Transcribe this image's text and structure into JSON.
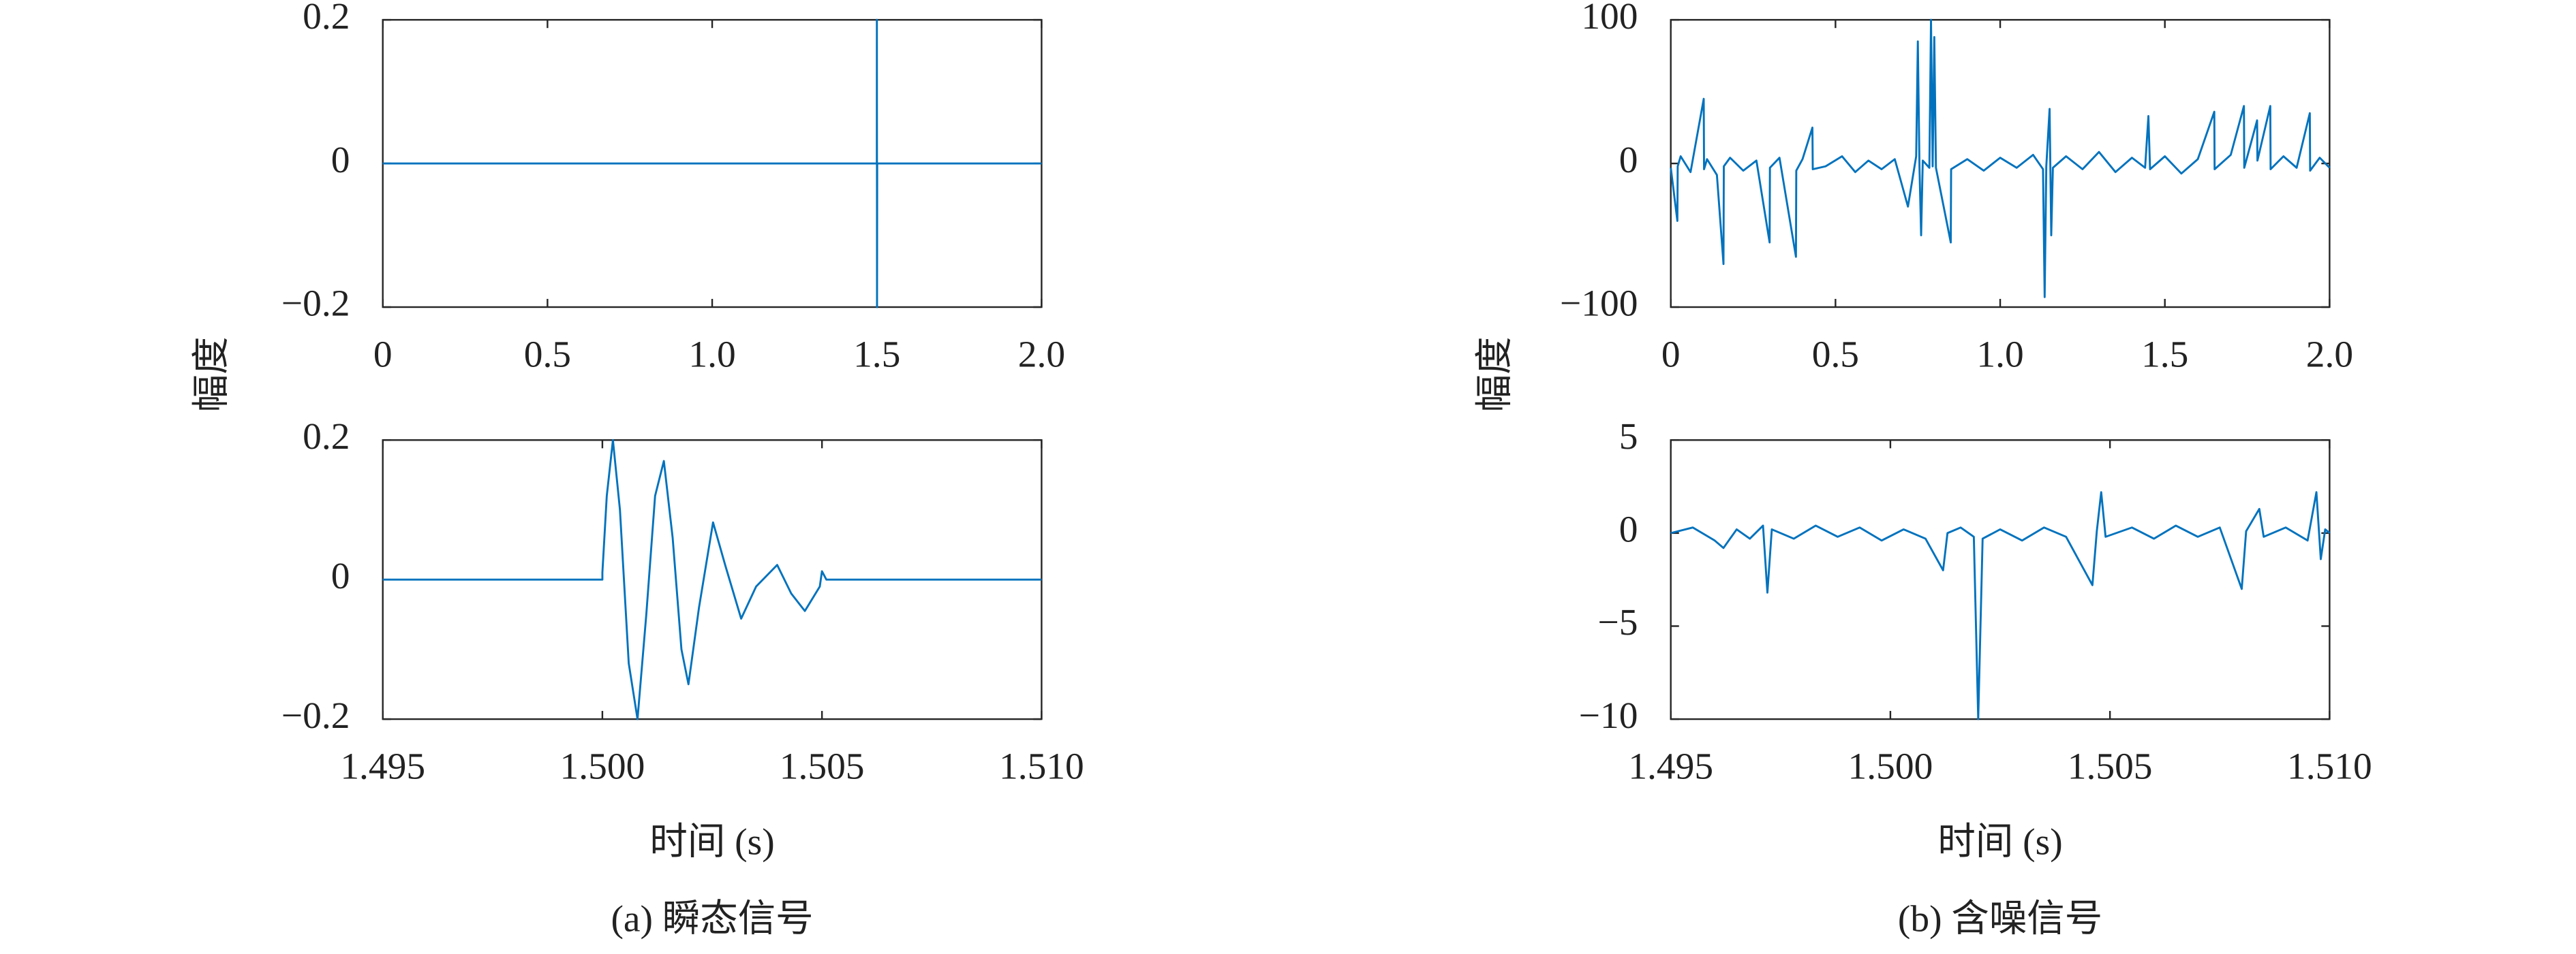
{
  "chart_data": [
    {
      "type": "line",
      "ylabel": "幅度",
      "xlim": [
        0,
        2
      ],
      "xticks": [
        0,
        0.5,
        {
          "value": 1,
          "label": "1.0"
        },
        1.5,
        {
          "value": 2,
          "label": "2.0"
        }
      ],
      "ylim": [
        -0.2,
        0.2
      ],
      "yticks": [
        {
          "value": -0.2,
          "label": "−0.2"
        },
        0,
        0.2
      ],
      "series": [
        {
          "color": "#0072bd",
          "x": [
            0,
            1.4999,
            1.5,
            1.5005,
            1.501,
            2.0
          ],
          "values": [
            0,
            0,
            0.2,
            -0.2,
            0,
            0
          ]
        }
      ]
    },
    {
      "type": "line",
      "xlabel": "时间 (s)",
      "caption": "(a) 瞬态信号",
      "xlim": [
        1.495,
        1.51
      ],
      "xticks": [
        {
          "value": 1.495,
          "label": "1.495"
        },
        {
          "value": 1.5,
          "label": "1.500"
        },
        {
          "value": 1.505,
          "label": "1.505"
        },
        {
          "value": 1.51,
          "label": "1.510"
        }
      ],
      "ylim": [
        -0.2,
        0.2
      ],
      "yticks": [
        {
          "value": -0.2,
          "label": "−0.2"
        },
        0,
        0.2
      ],
      "series": [
        {
          "color": "#0072bd",
          "x": [
            1.495,
            1.5,
            1.5,
            1.5001,
            1.50024,
            1.5004,
            1.5006,
            1.5008,
            1.501,
            1.5012,
            1.5014,
            1.5016,
            1.5018,
            1.50196,
            1.5022,
            1.50252,
            1.5028,
            1.50316,
            1.5035,
            1.50398,
            1.5043,
            1.50461,
            1.50495,
            1.505,
            1.5051,
            1.51
          ],
          "values": [
            0,
            0,
            0.01,
            0.12,
            0.2,
            0.1,
            -0.12,
            -0.2,
            -0.05,
            0.12,
            0.17,
            0.06,
            -0.1,
            -0.15,
            -0.04,
            0.082,
            0.02,
            -0.056,
            -0.01,
            0.021,
            -0.02,
            -0.045,
            -0.01,
            0.012,
            0,
            0
          ]
        }
      ]
    },
    {
      "type": "line",
      "ylabel": "幅度",
      "xlim": [
        0,
        2
      ],
      "xticks": [
        0,
        0.5,
        {
          "value": 1,
          "label": "1.0"
        },
        1.5,
        {
          "value": 2,
          "label": "2.0"
        }
      ],
      "ylim": [
        -100,
        100
      ],
      "yticks": [
        {
          "value": -100,
          "label": "−100"
        },
        0,
        100
      ],
      "series": [
        {
          "color": "#0072bd",
          "x": [
            0,
            0.02,
            0.021,
            0.03,
            0.06,
            0.1,
            0.101,
            0.11,
            0.14,
            0.16,
            0.161,
            0.18,
            0.22,
            0.26,
            0.3,
            0.301,
            0.33,
            0.38,
            0.381,
            0.4,
            0.43,
            0.431,
            0.47,
            0.52,
            0.56,
            0.6,
            0.64,
            0.68,
            0.72,
            0.745,
            0.75,
            0.755,
            0.76,
            0.765,
            0.785,
            0.79,
            0.795,
            0.8,
            0.805,
            0.85,
            0.851,
            0.9,
            0.95,
            1.0,
            1.05,
            1.1,
            1.13,
            1.135,
            1.14,
            1.15,
            1.155,
            1.16,
            1.2,
            1.25,
            1.3,
            1.35,
            1.4,
            1.44,
            1.45,
            1.455,
            1.5,
            1.55,
            1.6,
            1.65,
            1.651,
            1.7,
            1.74,
            1.741,
            1.78,
            1.781,
            1.82,
            1.821,
            1.86,
            1.9,
            1.94,
            1.941,
            1.97,
            2.0
          ],
          "values": [
            -3,
            -40,
            -2,
            5,
            -6,
            45,
            -4,
            3,
            -8,
            -70,
            -2,
            4,
            -5,
            2,
            -55,
            -3,
            4,
            -65,
            -5,
            3,
            25,
            -4,
            -2,
            5,
            -6,
            2,
            -4,
            3,
            -30,
            5,
            85,
            -3,
            -50,
            2,
            -3,
            100,
            -2,
            88,
            -3,
            -55,
            -4,
            3,
            -5,
            4,
            -3,
            6,
            -4,
            -93,
            -2,
            38,
            -50,
            -3,
            5,
            -4,
            8,
            -6,
            4,
            -3,
            33,
            -4,
            5,
            -7,
            3,
            36,
            -4,
            6,
            40,
            -3,
            30,
            2,
            40,
            -4,
            5,
            -3,
            35,
            -5,
            4,
            -3
          ]
        }
      ]
    },
    {
      "type": "line",
      "xlabel": "时间 (s)",
      "caption": "(b) 含噪信号",
      "xlim": [
        1.495,
        1.51
      ],
      "xticks": [
        {
          "value": 1.495,
          "label": "1.495"
        },
        {
          "value": 1.5,
          "label": "1.500"
        },
        {
          "value": 1.505,
          "label": "1.505"
        },
        {
          "value": 1.51,
          "label": "1.510"
        }
      ],
      "ylim": [
        -10,
        5
      ],
      "yticks": [
        {
          "value": -10,
          "label": "−10"
        },
        {
          "value": -5,
          "label": "−5"
        },
        0,
        5
      ],
      "series": [
        {
          "color": "#0072bd",
          "x": [
            1.495,
            1.4955,
            1.496,
            1.4962,
            1.4965,
            1.4968,
            1.4971,
            1.4972,
            1.4973,
            1.4978,
            1.4983,
            1.4988,
            1.4993,
            1.4998,
            1.5003,
            1.5008,
            1.5012,
            1.5013,
            1.5016,
            1.5019,
            1.502,
            1.5021,
            1.5025,
            1.503,
            1.5035,
            1.504,
            1.5046,
            1.5047,
            1.5048,
            1.5049,
            1.5055,
            1.506,
            1.5065,
            1.507,
            1.5075,
            1.508,
            1.5081,
            1.5084,
            1.5085,
            1.509,
            1.5095,
            1.5097,
            1.5098,
            1.5099,
            1.51
          ],
          "values": [
            0,
            0.3,
            -0.4,
            -0.8,
            0.2,
            -0.3,
            0.4,
            -3.2,
            0.2,
            -0.3,
            0.4,
            -0.2,
            0.3,
            -0.4,
            0.2,
            -0.3,
            -2,
            0,
            0.3,
            -0.2,
            -10,
            -0.3,
            0.2,
            -0.4,
            0.3,
            -0.2,
            -2.8,
            0.1,
            2.2,
            -0.2,
            0.3,
            -0.3,
            0.4,
            -0.2,
            0.3,
            -3,
            0.1,
            1.3,
            -0.2,
            0.3,
            -0.4,
            2.2,
            -1.4,
            0.2,
            0
          ]
        }
      ]
    }
  ]
}
